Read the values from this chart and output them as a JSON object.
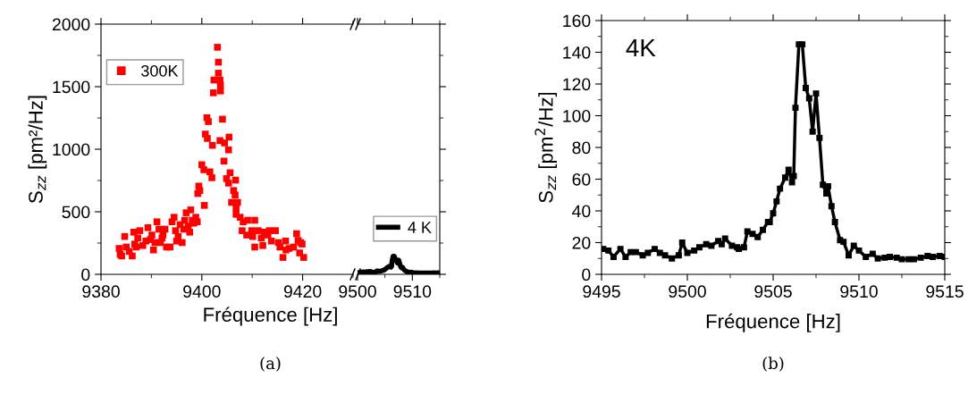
{
  "chart_data": [
    {
      "type": "scatter",
      "xlabel": "Fréquence [Hz]",
      "ylabel": "S$_{zz}$ [pm²/Hz]",
      "xlim": [
        9380,
        9430
      ],
      "xticks": [
        9380,
        9400,
        9420
      ],
      "ylim": [
        0,
        2000
      ],
      "yticks": [
        0,
        500,
        1000,
        1500,
        2000
      ],
      "legend": "top left",
      "marker": "square",
      "tick_labels": "xy",
      "series": [
        {
          "name": "300K",
          "color": "#ff0000",
          "x": [
            9403.1,
            9403.3,
            9403.3,
            9403.6,
            9402.4,
            9403.7,
            9403.7,
            9402.3,
            9404.1,
            9401.0,
            9401.3,
            9400.7,
            9401.1,
            9403.6,
            9405.4,
            9404.5,
            9405.3,
            9402.1,
            9404.4,
            9400.0,
            9400.4,
            9401.6,
            9402.0,
            9405.6,
            9404.9,
            9405.3,
            9406.7,
            9406.3,
            9406.6,
            9399.4,
            9399.6,
            9399.2,
            9400.5,
            9405.9,
            9407.1,
            9406.8,
            9406.8,
            9407.6,
            9408.2,
            9409.1,
            9410.5,
            9408.0,
            9408.9,
            9410.1,
            9410.5,
            9411.2,
            9411.8,
            9412.1,
            9413.1,
            9413.4,
            9413.8,
            9414.6,
            9415.2,
            9415.5,
            9416.1,
            9416.6,
            9417.3,
            9418.2,
            9418.8,
            9419.1,
            9419.6,
            9419.4,
            9420.2,
            9419.9,
            9416.7,
            9409.9,
            9412.4,
            9383.6,
            9383.8,
            9384.1,
            9384.7,
            9385.0,
            9385.6,
            9386.2,
            9386.5,
            9386.7,
            9387.3,
            9387.7,
            9388.3,
            9388.9,
            9389.3,
            9389.8,
            9390.4,
            9390.7,
            9391.1,
            9391.5,
            9391.8,
            9392.3,
            9392.7,
            9393.0,
            9393.7,
            9394.1,
            9394.5,
            9394.8,
            9395.3,
            9395.7,
            9396.1,
            9396.6,
            9396.9,
            9397.3,
            9397.8,
            9398.1,
            9398.4,
            9398.8,
            9399.1,
            9397.6,
            9396.4,
            9395.0,
            9392.1,
            9390.1,
            9387.0
          ],
          "values": [
            1815,
            1696,
            1608,
            1553,
            1553,
            1513,
            1466,
            1451,
            1240,
            1252,
            1221,
            1121,
            1086,
            1069,
            1097,
            1050,
            995,
            1031,
            905,
            876,
            836,
            819,
            772,
            812,
            765,
            729,
            753,
            670,
            634,
            705,
            670,
            646,
            551,
            575,
            575,
            527,
            480,
            456,
            420,
            432,
            432,
            349,
            314,
            302,
            218,
            349,
            290,
            230,
            314,
            349,
            266,
            349,
            254,
            218,
            135,
            266,
            207,
            218,
            325,
            271,
            254,
            171,
            135,
            242,
            195,
            349,
            337,
            207,
            159,
            147,
            302,
            218,
            183,
            147,
            337,
            242,
            290,
            349,
            230,
            266,
            373,
            278,
            195,
            254,
            420,
            361,
            254,
            314,
            361,
            218,
            218,
            420,
            456,
            349,
            302,
            397,
            254,
            432,
            492,
            385,
            515,
            432,
            409,
            456,
            420,
            337,
            361,
            266,
            290,
            314,
            218
          ]
        }
      ],
      "annotations": [
        "(a)"
      ]
    },
    {
      "type": "line",
      "xlim": [
        9500,
        9515
      ],
      "xticks": [
        9500,
        9510
      ],
      "ylim": [
        0,
        2000
      ],
      "yticks": [
        0,
        500,
        1000,
        1500,
        2000
      ],
      "tick_labels": "x",
      "legend": "bottom right",
      "line_style": "solid",
      "series": [
        {
          "name": "4 K",
          "color": "#000000",
          "x": [
            9500.0,
            9500.4,
            9500.7,
            9501.1,
            9501.4,
            9501.8,
            9502.0,
            9502.2,
            9502.6,
            9502.9,
            9503.0,
            9503.3,
            9503.5,
            9503.8,
            9504.1,
            9504.4,
            9504.7,
            9504.8,
            9505.0,
            9505.2,
            9505.4,
            9505.7,
            9505.9,
            9506.1,
            9506.2,
            9506.3,
            9506.5,
            9506.7,
            9506.9,
            9507.1,
            9507.3,
            9507.5,
            9507.7,
            9507.9,
            9508.1,
            9508.2,
            9508.4,
            9508.6,
            9508.9,
            9509.1,
            9509.4,
            9509.7,
            9510.0,
            9510.4,
            9510.8,
            9511.1,
            9511.5,
            9511.8,
            9512.2,
            9512.5,
            9512.9,
            9513.2,
            9513.6,
            9514.0,
            9514.3,
            9514.7,
            9515.0
          ],
          "values": [
            14,
            15,
            17,
            19,
            18,
            21,
            19,
            23,
            18,
            17,
            16,
            17,
            27,
            26,
            24,
            28,
            33,
            33,
            39,
            46,
            54,
            61,
            66,
            58,
            62,
            105,
            145,
            145,
            118,
            111,
            90,
            114,
            86,
            57,
            51,
            56,
            43,
            33,
            22,
            21,
            12,
            18,
            15,
            11,
            13,
            10,
            11,
            11,
            11,
            10,
            10,
            10,
            11,
            12,
            11,
            12,
            11
          ]
        }
      ]
    },
    {
      "type": "line",
      "xlabel": "Fréquence [Hz]",
      "ylabel": "S$_{zz}$ [pm$^{2}$/Hz]",
      "xlim": [
        9495,
        9515
      ],
      "xticks": [
        9495,
        9500,
        9505,
        9510,
        9515
      ],
      "ylim": [
        0,
        160
      ],
      "yticks": [
        0,
        20,
        40,
        60,
        80,
        100,
        120,
        140,
        160
      ],
      "marker": "square",
      "line_style": "solid",
      "series": [
        {
          "color": "#000000",
          "x": [
            9495.1,
            9495.4,
            9495.7,
            9496.1,
            9496.4,
            9496.7,
            9497.0,
            9497.4,
            9497.7,
            9498.1,
            9498.4,
            9498.7,
            9499.1,
            9499.5,
            9499.7,
            9500.0,
            9500.4,
            9500.7,
            9501.1,
            9501.4,
            9501.8,
            9502.0,
            9502.2,
            9502.6,
            9502.9,
            9503.0,
            9503.3,
            9503.5,
            9503.8,
            9504.1,
            9504.4,
            9504.7,
            9504.8,
            9505.0,
            9505.2,
            9505.4,
            9505.7,
            9505.9,
            9506.1,
            9506.2,
            9506.3,
            9506.5,
            9506.7,
            9506.9,
            9507.1,
            9507.3,
            9507.5,
            9507.7,
            9507.9,
            9508.1,
            9508.2,
            9508.4,
            9508.6,
            9508.9,
            9509.1,
            9509.4,
            9509.7,
            9510.0,
            9510.4,
            9510.8,
            9511.1,
            9511.5,
            9511.8,
            9512.2,
            9512.5,
            9512.9,
            9513.2,
            9513.6,
            9514.0,
            9514.3,
            9514.7,
            9515.0
          ],
          "values": [
            16,
            15,
            11,
            16,
            11,
            14,
            14,
            12,
            13.5,
            16,
            13.5,
            12,
            10,
            12,
            20,
            13.5,
            15,
            17,
            19,
            18,
            21,
            19,
            22.5,
            18,
            17,
            16,
            17,
            27,
            25.5,
            23.5,
            28,
            33,
            33,
            38.5,
            46,
            54,
            61,
            66,
            58,
            62,
            105,
            145,
            145,
            117.5,
            111,
            90,
            114,
            86,
            56.5,
            51,
            55.5,
            43,
            33,
            21.5,
            20.5,
            12,
            18,
            15,
            11,
            13,
            10,
            10.5,
            11,
            10.5,
            9.5,
            9.5,
            9.5,
            10.5,
            11.5,
            11,
            11.5,
            11
          ]
        }
      ],
      "annotations": [
        "4K",
        "(b)"
      ]
    }
  ]
}
